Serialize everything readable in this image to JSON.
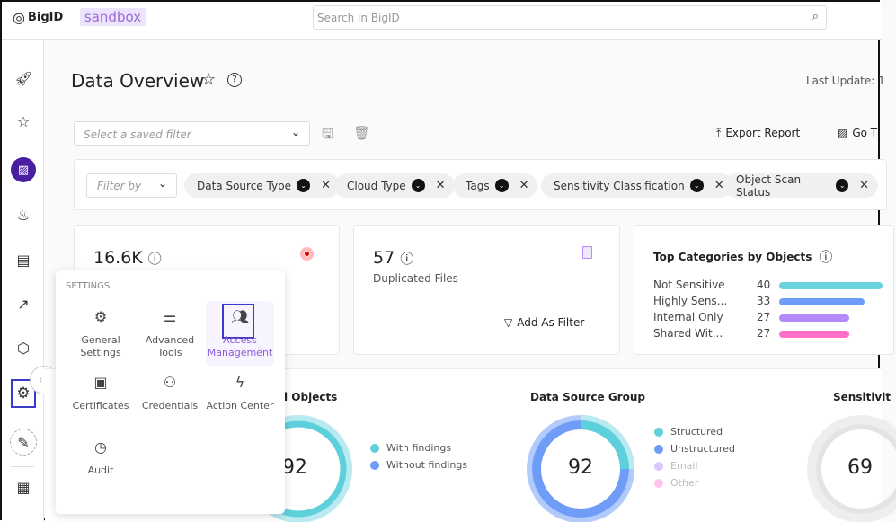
{
  "header": {
    "logo": "BigID",
    "env_badge": "sandbox",
    "search_placeholder": "Search in BigID"
  },
  "sidebar": {
    "items": [
      "rocket-icon",
      "star-icon",
      "dashboard-icon",
      "fire-icon",
      "report-search-icon",
      "chart-icon",
      "cube-icon",
      "gear-icon",
      "pencil-icon",
      "apps-icon"
    ],
    "active": "dashboard-icon",
    "accent": "#4a1ea0"
  },
  "page": {
    "title": "Data Overview",
    "last_update": "Last Update: 1",
    "saved_filter_placeholder": "Select a saved filter",
    "export_label": "Export Report",
    "goto_label": "Go T"
  },
  "filters": {
    "filter_by_placeholder": "Filter by",
    "chips": [
      "Data Source Type",
      "Cloud Type",
      "Tags",
      "Sensitivity Classification",
      "Object Scan Status"
    ]
  },
  "cards": {
    "objects": {
      "value": "16.6K"
    },
    "duplicated": {
      "value": "57",
      "label": "Duplicated Files",
      "action": "Add As Filter"
    },
    "top_categories": {
      "title": "Top Categories by Objects",
      "items": [
        {
          "label": "Not Sensitive",
          "value": 40,
          "color": "#6ad3de"
        },
        {
          "label": "Highly Sens...",
          "value": 33,
          "color": "#6f9cf7"
        },
        {
          "label": "Internal Only",
          "value": 27,
          "color": "#b48af6"
        },
        {
          "label": "Shared Wit...",
          "value": 27,
          "color": "#ff6ec7"
        }
      ]
    }
  },
  "charts": {
    "objects": {
      "title": "l Objects",
      "total": "92",
      "legend": [
        {
          "label": "With findings",
          "color": "#5ed0dc"
        },
        {
          "label": "Without findings",
          "color": "#6f9cf7"
        }
      ]
    },
    "data_source_group": {
      "title": "Data Source Group",
      "total": "92",
      "legend": [
        {
          "label": "Structured",
          "color": "#5ed0dc"
        },
        {
          "label": "Unstructured",
          "color": "#6f9cf7"
        },
        {
          "label": "Email",
          "color": "#dcc8fa"
        },
        {
          "label": "Other",
          "color": "#ffc4ea"
        }
      ]
    },
    "sensitivity": {
      "title": "Sensitivit",
      "total": "69"
    }
  },
  "settings_menu": {
    "heading": "SETTINGS",
    "items": [
      {
        "label": "General Settings",
        "icon": "gear-icon"
      },
      {
        "label": "Advanced Tools",
        "icon": "sliders-icon"
      },
      {
        "label": "Access Management",
        "icon": "users-icon",
        "selected": true
      },
      {
        "label": "Certificates",
        "icon": "certificate-icon"
      },
      {
        "label": "Credentials",
        "icon": "user-check-icon"
      },
      {
        "label": "Action Center",
        "icon": "lightning-icon"
      },
      {
        "label": "Audit",
        "icon": "clock-icon"
      }
    ],
    "highlight_color": "#3b3bc9",
    "selected_color": "#8a5bd6"
  }
}
